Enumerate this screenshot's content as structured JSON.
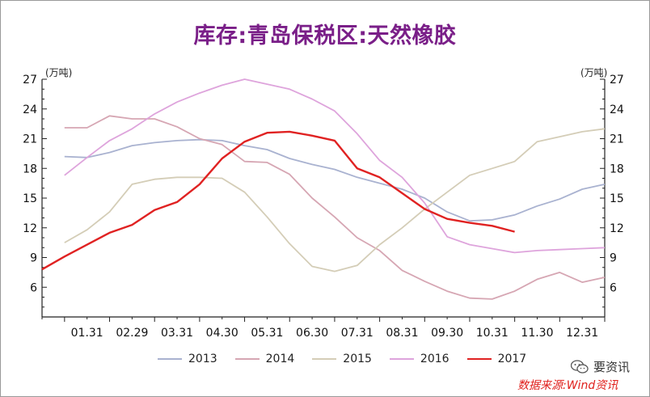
{
  "title": "库存:青岛保税区:天然橡胶",
  "chart_data": {
    "type": "line",
    "title": "库存:青岛保税区:天然橡胶",
    "unit_left": "(万吨)",
    "unit_right": "(万吨)",
    "ylim": [
      3,
      27
    ],
    "yticks": [
      6,
      9,
      12,
      15,
      18,
      21,
      24,
      27
    ],
    "categories": [
      "01.31",
      "02.29",
      "03.31",
      "04.30",
      "05.31",
      "06.30",
      "07.31",
      "08.31",
      "09.30",
      "10.31",
      "11.30",
      "12.31"
    ],
    "grid": false,
    "legend": "bottom",
    "series": [
      {
        "name": "2013",
        "color": "#a9b2d0",
        "x": [
          0.0,
          0.5,
          1.0,
          1.5,
          2.0,
          2.5,
          3.0,
          3.5,
          4.0,
          4.5,
          5.0,
          5.5,
          6.0,
          6.5,
          7.0,
          7.5,
          8.0,
          8.5,
          9.0,
          9.5,
          10.0,
          10.5,
          11.0,
          11.5,
          12.0
        ],
        "values": [
          19.2,
          19.1,
          19.6,
          20.3,
          20.6,
          20.8,
          20.9,
          20.8,
          20.3,
          19.9,
          19.0,
          18.4,
          17.9,
          17.1,
          16.5,
          15.9,
          15.0,
          13.6,
          12.7,
          12.8,
          13.3,
          14.2,
          14.9,
          15.9,
          16.4
        ]
      },
      {
        "name": "2014",
        "color": "#d6a6b3",
        "x": [
          0.0,
          0.5,
          1.0,
          1.5,
          2.0,
          2.5,
          3.0,
          3.5,
          4.0,
          4.5,
          5.0,
          5.5,
          6.0,
          6.5,
          7.0,
          7.5,
          8.0,
          8.5,
          9.0,
          9.5,
          10.0,
          10.5,
          11.0,
          11.5,
          12.0
        ],
        "values": [
          22.1,
          22.1,
          23.3,
          23.0,
          23.0,
          22.2,
          21.0,
          20.4,
          18.7,
          18.6,
          17.4,
          15.0,
          13.1,
          11.0,
          9.7,
          7.7,
          6.6,
          5.6,
          4.9,
          4.8,
          5.6,
          6.8,
          7.5,
          6.5,
          7.0
        ]
      },
      {
        "name": "2015",
        "color": "#d4cdb7",
        "x": [
          0.0,
          0.5,
          1.0,
          1.5,
          2.0,
          2.5,
          3.0,
          3.5,
          4.0,
          4.5,
          5.0,
          5.5,
          6.0,
          6.5,
          7.0,
          7.5,
          8.0,
          8.5,
          9.0,
          9.5,
          10.0,
          10.5,
          11.0,
          11.5,
          12.0
        ],
        "values": [
          10.5,
          11.8,
          13.6,
          16.4,
          16.9,
          17.1,
          17.1,
          17.0,
          15.6,
          13.1,
          10.4,
          8.1,
          7.6,
          8.2,
          10.3,
          12.0,
          13.9,
          15.6,
          17.3,
          18.0,
          18.7,
          20.7,
          21.2,
          21.7,
          22.0
        ]
      },
      {
        "name": "2016",
        "color": "#dea4dc",
        "x": [
          0.0,
          0.5,
          1.0,
          1.5,
          2.0,
          2.5,
          3.0,
          3.5,
          4.0,
          4.5,
          5.0,
          5.5,
          6.0,
          6.5,
          7.0,
          7.5,
          8.0,
          8.5,
          9.0,
          9.5,
          10.0,
          10.5,
          11.0,
          11.5,
          12.0
        ],
        "values": [
          17.3,
          19.1,
          20.8,
          22.0,
          23.5,
          24.7,
          25.6,
          26.4,
          27.0,
          26.5,
          26.0,
          25.0,
          23.8,
          21.5,
          18.8,
          17.1,
          14.5,
          11.1,
          10.3,
          9.9,
          9.5,
          9.7,
          9.8,
          9.9,
          10.0
        ]
      },
      {
        "name": "2017",
        "color": "#e02222",
        "x": [
          -0.5,
          0.0,
          0.5,
          1.0,
          1.5,
          2.0,
          2.5,
          3.0,
          3.5,
          4.0,
          4.5,
          5.0,
          5.5,
          6.0,
          6.5,
          7.0,
          7.5,
          8.0,
          8.5,
          9.0,
          9.5,
          10.0
        ],
        "values": [
          7.8,
          9.1,
          10.3,
          11.5,
          12.3,
          13.8,
          14.6,
          16.4,
          19.0,
          20.7,
          21.6,
          21.7,
          21.3,
          20.8,
          18.0,
          17.1,
          15.5,
          13.9,
          12.9,
          12.5,
          12.2,
          11.6
        ]
      }
    ]
  },
  "watermark": {
    "name": "要资讯",
    "source": "数据来源:Wind资讯"
  }
}
